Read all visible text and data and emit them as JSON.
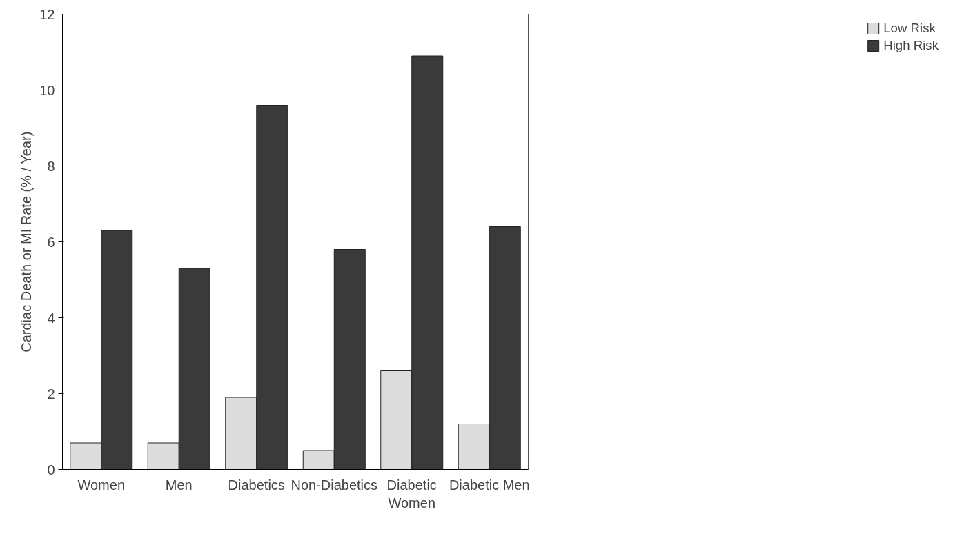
{
  "chart_data": {
    "type": "bar",
    "ylabel": "Cardiac Death or MI Rate (% / Year)",
    "categories": [
      "Women",
      "Men",
      "Diabetics",
      "Non-Diabetics",
      "Diabetic\nWomen",
      "Diabetic Men"
    ],
    "series": [
      {
        "name": "Low Risk",
        "color": "#dcdcdc",
        "values": [
          0.7,
          0.7,
          1.9,
          0.5,
          2.6,
          1.2
        ]
      },
      {
        "name": "High Risk",
        "color": "#3a3a3a",
        "values": [
          6.3,
          5.3,
          9.6,
          5.8,
          10.9,
          6.4
        ]
      }
    ],
    "ylim": [
      0,
      12
    ],
    "yticks": [
      0,
      2,
      4,
      6,
      8,
      10,
      12
    ],
    "grid": false,
    "legend": "right"
  }
}
